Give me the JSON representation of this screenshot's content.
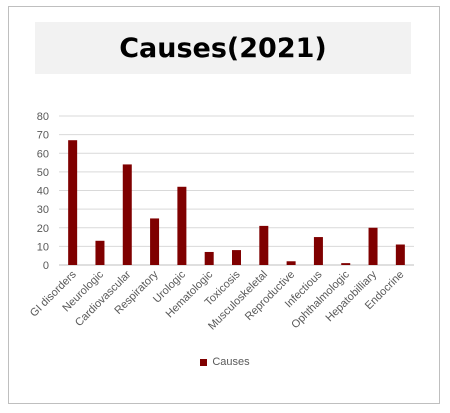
{
  "chart_data": {
    "type": "bar",
    "title": "Causes(2021)",
    "categories": [
      "GI disorders",
      "Neurologic",
      "Cardiovascular",
      "Respiratory",
      "Urologic",
      "Hematologic",
      "Toxicosis",
      "Musculoskeletal",
      "Reproductive",
      "Infectious",
      "Ophthalmologic",
      "Hepatobilliary",
      "Endocrine"
    ],
    "series": [
      {
        "name": "Causes",
        "values": [
          67,
          13,
          54,
          25,
          42,
          7,
          8,
          21,
          2,
          15,
          1,
          20,
          11
        ]
      }
    ],
    "ylim": [
      0,
      80
    ],
    "yticks": [
      0,
      10,
      20,
      30,
      40,
      50,
      60,
      70,
      80
    ],
    "grid": true,
    "legend": "bottom",
    "colors": {
      "bar": "#7f0000",
      "grid": "#d9d9d9",
      "axis": "#bfbfbf"
    }
  }
}
